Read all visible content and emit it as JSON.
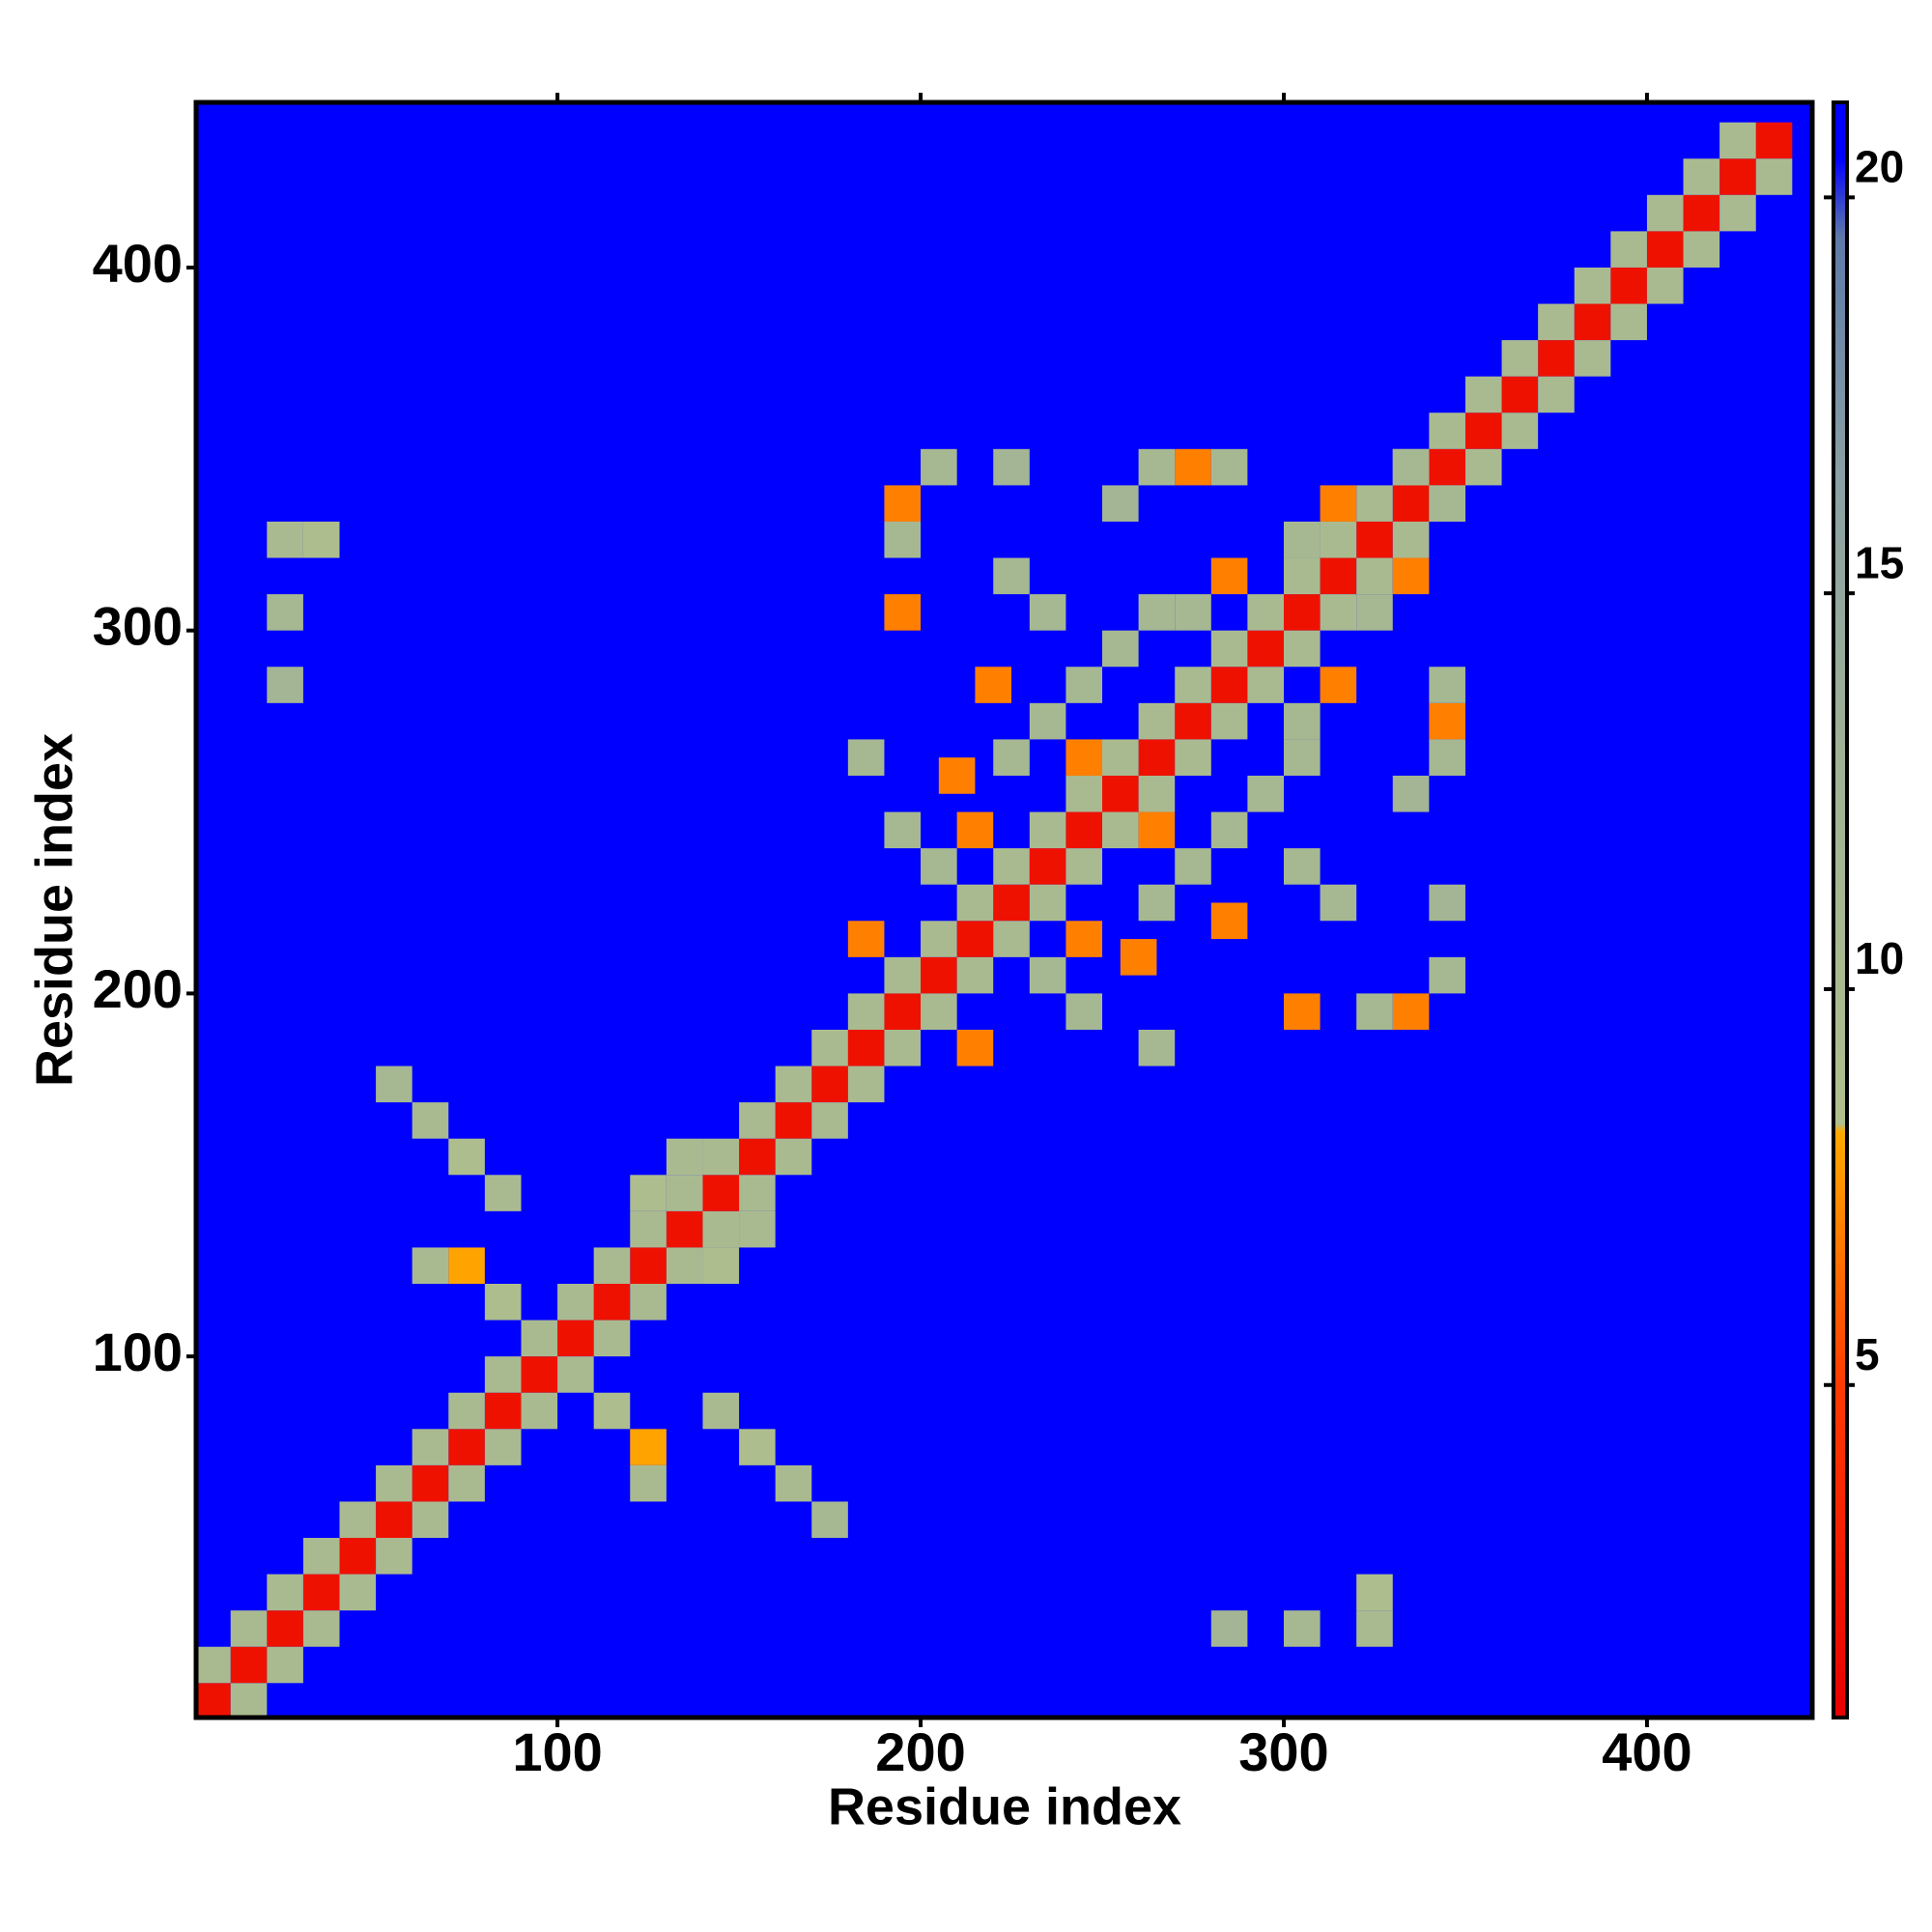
{
  "chart_data": {
    "type": "heatmap",
    "x_label": "Residue index",
    "y_label": "Residue index",
    "xlim": [
      0.5,
      445.5
    ],
    "ylim": [
      0.5,
      445.5
    ],
    "xticks": [
      100,
      200,
      300,
      400
    ],
    "yticks": [
      100,
      200,
      300,
      400
    ],
    "clim": [
      0.8,
      21.2
    ],
    "cticks": [
      5,
      10,
      15,
      20
    ],
    "colormap": [
      [
        0.8,
        "#e80000"
      ],
      [
        5,
        "#ff3a00"
      ],
      [
        8.2,
        "#ffaa00"
      ],
      [
        8.3,
        "#b0bf8c"
      ],
      [
        13,
        "#9fb296"
      ],
      [
        16.5,
        "#8aa0a4"
      ],
      [
        19.5,
        "#5f7aa8"
      ],
      [
        20.5,
        "#0000ff"
      ],
      [
        21.2,
        "#0000ff"
      ]
    ],
    "background": 21,
    "cells": [
      [
        5,
        5,
        2
      ],
      [
        15,
        15,
        2
      ],
      [
        25,
        25,
        2
      ],
      [
        35,
        35,
        2
      ],
      [
        45,
        45,
        2
      ],
      [
        55,
        55,
        2
      ],
      [
        65,
        65,
        2
      ],
      [
        75,
        75,
        2
      ],
      [
        85,
        85,
        2
      ],
      [
        95,
        95,
        2
      ],
      [
        105,
        105,
        2
      ],
      [
        115,
        115,
        2
      ],
      [
        125,
        125,
        2
      ],
      [
        135,
        135,
        2
      ],
      [
        145,
        145,
        2
      ],
      [
        155,
        155,
        2
      ],
      [
        165,
        165,
        2
      ],
      [
        175,
        175,
        2
      ],
      [
        185,
        185,
        2
      ],
      [
        195,
        195,
        2
      ],
      [
        205,
        205,
        2
      ],
      [
        215,
        215,
        2
      ],
      [
        225,
        225,
        2
      ],
      [
        235,
        235,
        2
      ],
      [
        245,
        245,
        2
      ],
      [
        255,
        255,
        2
      ],
      [
        265,
        265,
        2
      ],
      [
        275,
        275,
        2
      ],
      [
        285,
        285,
        2
      ],
      [
        295,
        295,
        2
      ],
      [
        305,
        305,
        2
      ],
      [
        315,
        315,
        2
      ],
      [
        325,
        325,
        2
      ],
      [
        335,
        335,
        2
      ],
      [
        345,
        345,
        2
      ],
      [
        355,
        355,
        2
      ],
      [
        365,
        365,
        2
      ],
      [
        375,
        375,
        2
      ],
      [
        385,
        385,
        2
      ],
      [
        395,
        395,
        2
      ],
      [
        405,
        405,
        2
      ],
      [
        415,
        415,
        2
      ],
      [
        425,
        425,
        2
      ],
      [
        435,
        435,
        2
      ],
      [
        15,
        5,
        10
      ],
      [
        5,
        15,
        10
      ],
      [
        25,
        15,
        10
      ],
      [
        15,
        25,
        10
      ],
      [
        35,
        25,
        10
      ],
      [
        25,
        35,
        10
      ],
      [
        45,
        35,
        10
      ],
      [
        35,
        45,
        10
      ],
      [
        55,
        45,
        10
      ],
      [
        45,
        55,
        10
      ],
      [
        65,
        55,
        10
      ],
      [
        55,
        65,
        10
      ],
      [
        75,
        65,
        10
      ],
      [
        65,
        75,
        10
      ],
      [
        85,
        75,
        10
      ],
      [
        75,
        85,
        10
      ],
      [
        95,
        85,
        10
      ],
      [
        85,
        95,
        10
      ],
      [
        105,
        95,
        10
      ],
      [
        95,
        105,
        10
      ],
      [
        115,
        105,
        10
      ],
      [
        105,
        115,
        10
      ],
      [
        125,
        115,
        10
      ],
      [
        115,
        125,
        10
      ],
      [
        135,
        125,
        10
      ],
      [
        125,
        135,
        10
      ],
      [
        145,
        135,
        10
      ],
      [
        135,
        145,
        10
      ],
      [
        155,
        145,
        10
      ],
      [
        145,
        155,
        10
      ],
      [
        165,
        155,
        10
      ],
      [
        155,
        165,
        10
      ],
      [
        175,
        165,
        10
      ],
      [
        165,
        175,
        10
      ],
      [
        185,
        175,
        10
      ],
      [
        175,
        185,
        10
      ],
      [
        195,
        185,
        10
      ],
      [
        185,
        195,
        10
      ],
      [
        205,
        195,
        10
      ],
      [
        195,
        205,
        10
      ],
      [
        215,
        205,
        10
      ],
      [
        205,
        215,
        10
      ],
      [
        225,
        215,
        10
      ],
      [
        215,
        225,
        10
      ],
      [
        235,
        225,
        10
      ],
      [
        225,
        235,
        10
      ],
      [
        245,
        235,
        10
      ],
      [
        235,
        245,
        10
      ],
      [
        255,
        245,
        10
      ],
      [
        245,
        255,
        10
      ],
      [
        265,
        255,
        10
      ],
      [
        255,
        265,
        10
      ],
      [
        275,
        265,
        10
      ],
      [
        265,
        275,
        10
      ],
      [
        285,
        275,
        10
      ],
      [
        275,
        285,
        10
      ],
      [
        295,
        285,
        10
      ],
      [
        285,
        295,
        10
      ],
      [
        305,
        295,
        10
      ],
      [
        295,
        305,
        10
      ],
      [
        315,
        305,
        10
      ],
      [
        305,
        315,
        10
      ],
      [
        325,
        315,
        10
      ],
      [
        315,
        325,
        10
      ],
      [
        335,
        325,
        10
      ],
      [
        325,
        335,
        10
      ],
      [
        345,
        335,
        10
      ],
      [
        335,
        345,
        10
      ],
      [
        355,
        345,
        10
      ],
      [
        345,
        355,
        10
      ],
      [
        365,
        355,
        10
      ],
      [
        355,
        365,
        10
      ],
      [
        375,
        365,
        10
      ],
      [
        365,
        375,
        10
      ],
      [
        385,
        375,
        10
      ],
      [
        375,
        385,
        10
      ],
      [
        395,
        385,
        10
      ],
      [
        385,
        395,
        10
      ],
      [
        405,
        395,
        10
      ],
      [
        395,
        405,
        10
      ],
      [
        415,
        405,
        10
      ],
      [
        405,
        415,
        10
      ],
      [
        425,
        415,
        10
      ],
      [
        415,
        425,
        10
      ],
      [
        435,
        425,
        10
      ],
      [
        425,
        435,
        10
      ],
      [
        55,
        175,
        11
      ],
      [
        65,
        165,
        10
      ],
      [
        75,
        155,
        9
      ],
      [
        85,
        145,
        10
      ],
      [
        75,
        125,
        8
      ],
      [
        85,
        115,
        9
      ],
      [
        65,
        125,
        10
      ],
      [
        175,
        55,
        11
      ],
      [
        165,
        65,
        10
      ],
      [
        155,
        75,
        9
      ],
      [
        145,
        85,
        10
      ],
      [
        125,
        75,
        8
      ],
      [
        115,
        85,
        9
      ],
      [
        125,
        65,
        10
      ],
      [
        145,
        125,
        9
      ],
      [
        125,
        145,
        9
      ],
      [
        155,
        135,
        10
      ],
      [
        135,
        155,
        10
      ],
      [
        25,
        325,
        10
      ],
      [
        35,
        325,
        9
      ],
      [
        25,
        305,
        11
      ],
      [
        25,
        285,
        12
      ],
      [
        325,
        25,
        10
      ],
      [
        325,
        35,
        9
      ],
      [
        305,
        25,
        11
      ],
      [
        285,
        25,
        12
      ],
      [
        195,
        305,
        7
      ],
      [
        305,
        195,
        7
      ],
      [
        220,
        285,
        7
      ],
      [
        285,
        220,
        7
      ],
      [
        210,
        260,
        7
      ],
      [
        260,
        210,
        7
      ],
      [
        185,
        215,
        7
      ],
      [
        215,
        185,
        7
      ],
      [
        215,
        245,
        7
      ],
      [
        245,
        215,
        7
      ],
      [
        285,
        315,
        7
      ],
      [
        315,
        285,
        7
      ],
      [
        315,
        335,
        7
      ],
      [
        335,
        315,
        7
      ],
      [
        275,
        345,
        7
      ],
      [
        345,
        275,
        7
      ],
      [
        195,
        335,
        7
      ],
      [
        335,
        195,
        7
      ],
      [
        245,
        265,
        7
      ],
      [
        265,
        245,
        7
      ],
      [
        185,
        265,
        11
      ],
      [
        265,
        185,
        11
      ],
      [
        195,
        245,
        11
      ],
      [
        245,
        195,
        11
      ],
      [
        205,
        235,
        11
      ],
      [
        235,
        205,
        11
      ],
      [
        225,
        265,
        11
      ],
      [
        265,
        225,
        11
      ],
      [
        235,
        275,
        11
      ],
      [
        275,
        235,
        11
      ],
      [
        245,
        285,
        11
      ],
      [
        285,
        245,
        11
      ],
      [
        255,
        295,
        11
      ],
      [
        295,
        255,
        11
      ],
      [
        265,
        305,
        11
      ],
      [
        305,
        265,
        11
      ],
      [
        275,
        305,
        11
      ],
      [
        305,
        275,
        11
      ],
      [
        235,
        305,
        11
      ],
      [
        305,
        235,
        11
      ],
      [
        225,
        315,
        11
      ],
      [
        315,
        225,
        11
      ],
      [
        195,
        325,
        11
      ],
      [
        325,
        195,
        11
      ],
      [
        205,
        345,
        11
      ],
      [
        345,
        205,
        11
      ],
      [
        265,
        345,
        11
      ],
      [
        345,
        265,
        11
      ],
      [
        285,
        345,
        11
      ],
      [
        345,
        285,
        11
      ],
      [
        305,
        325,
        11
      ],
      [
        325,
        305,
        11
      ],
      [
        345,
        335,
        11
      ],
      [
        335,
        345,
        11
      ],
      [
        255,
        335,
        12
      ],
      [
        335,
        255,
        12
      ],
      [
        225,
        345,
        12
      ],
      [
        345,
        225,
        12
      ]
    ]
  }
}
